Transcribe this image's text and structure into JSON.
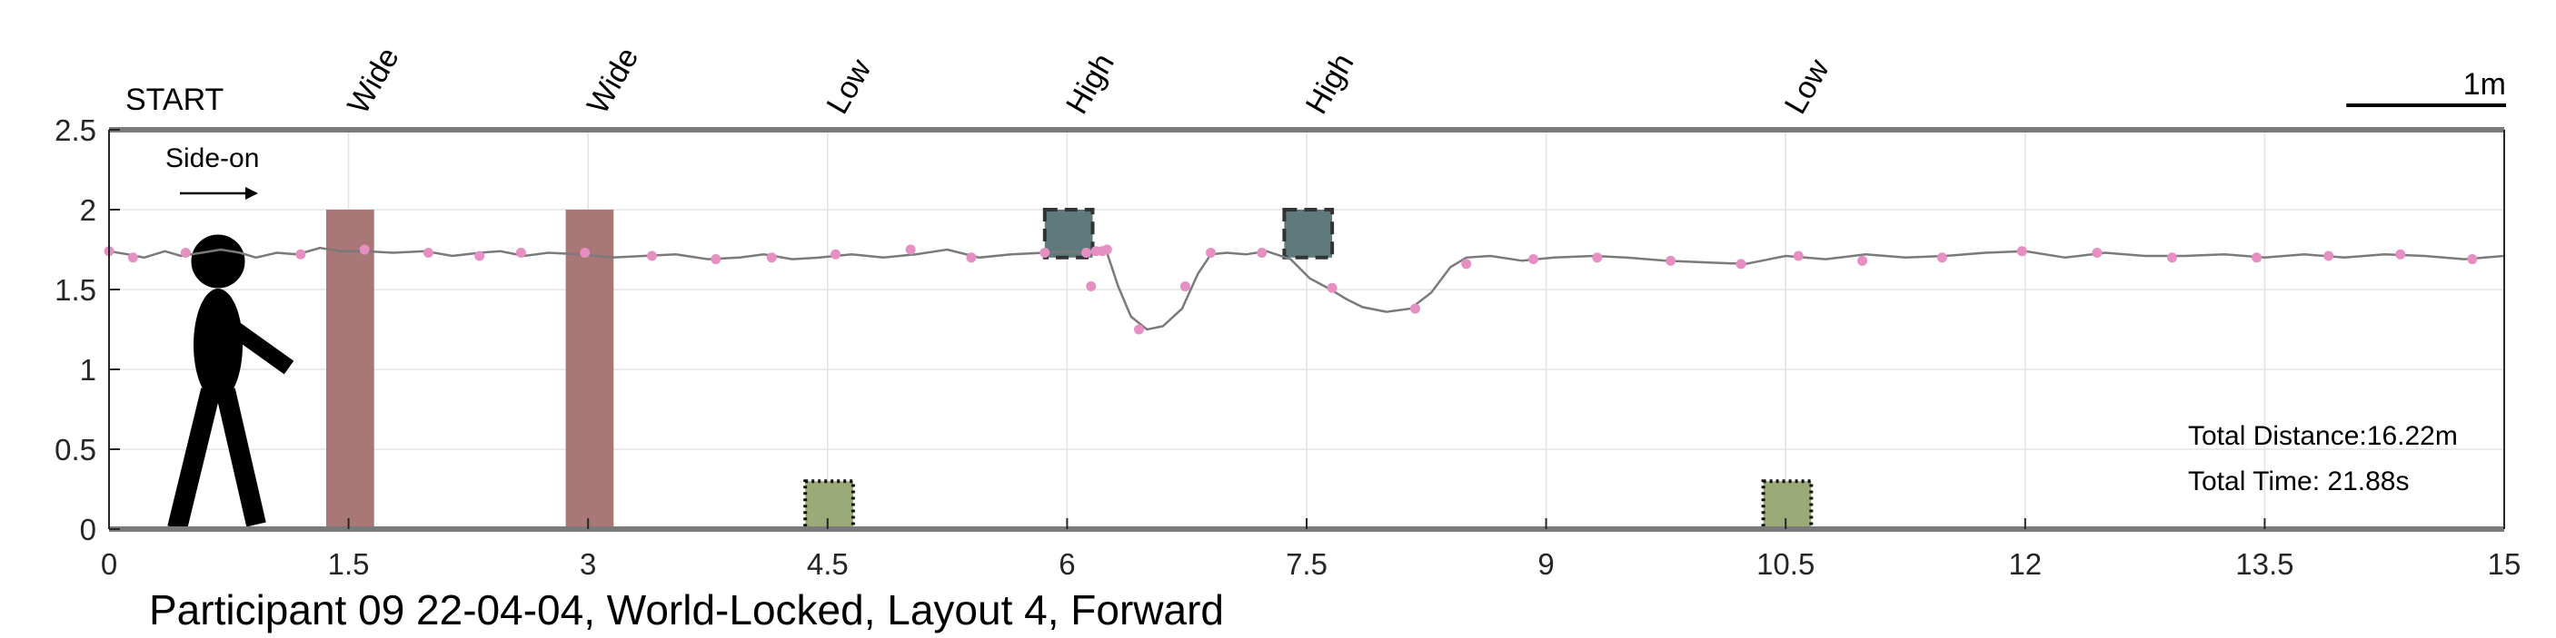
{
  "chart_data": {
    "type": "line",
    "title": "Participant 09 22-04-04, World-Locked, Layout 4, Forward",
    "xlim": [
      0,
      15
    ],
    "ylim": [
      0,
      2.5
    ],
    "x_ticks": [
      0,
      1.5,
      3,
      4.5,
      6,
      7.5,
      9,
      10.5,
      12,
      13.5,
      15
    ],
    "x_tick_labels": [
      "0",
      "1.5",
      "3",
      "4.5",
      "6",
      "7.5",
      "9",
      "10.5",
      "12",
      "13.5",
      "15"
    ],
    "y_ticks": [
      0,
      0.5,
      1,
      1.5,
      2,
      2.5
    ],
    "y_tick_labels": [
      "0",
      "0.5",
      "1",
      "1.5",
      "2",
      "2.5"
    ],
    "grid": true,
    "start_label": "START",
    "view_label": "Side-on",
    "scale_bar_label": "1m",
    "scale_bar_length": 1,
    "obstacle_labels": [
      {
        "x": 1.6,
        "text": "Wide"
      },
      {
        "x": 3.1,
        "text": "Wide"
      },
      {
        "x": 4.6,
        "text": "Low"
      },
      {
        "x": 6.1,
        "text": "High"
      },
      {
        "x": 7.6,
        "text": "High"
      },
      {
        "x": 10.6,
        "text": "Low"
      }
    ],
    "obstacles": [
      {
        "kind": "wide",
        "x0": 1.36,
        "x1": 1.66,
        "y0": 0,
        "y1": 2.0,
        "color": "#a97775"
      },
      {
        "kind": "wide",
        "x0": 2.86,
        "x1": 3.16,
        "y0": 0,
        "y1": 2.0,
        "color": "#a97775"
      },
      {
        "kind": "low",
        "x0": 4.36,
        "x1": 4.66,
        "y0": 0,
        "y1": 0.3,
        "color": "#9aab78"
      },
      {
        "kind": "high",
        "x0": 5.86,
        "x1": 6.16,
        "y0": 1.7,
        "y1": 2.0,
        "color": "#5e7a7d"
      },
      {
        "kind": "high",
        "x0": 7.36,
        "x1": 7.66,
        "y0": 1.7,
        "y1": 2.0,
        "color": "#5e7a7d"
      },
      {
        "kind": "low",
        "x0": 10.36,
        "x1": 10.66,
        "y0": 0,
        "y1": 0.3,
        "color": "#9aab78"
      }
    ],
    "series": [
      {
        "line_color": "#7a7a7a",
        "marker_color": "#e58fc3",
        "x": [
          0.0,
          0.12,
          0.22,
          0.35,
          0.45,
          0.58,
          0.7,
          0.82,
          0.92,
          1.05,
          1.18,
          1.32,
          1.45,
          1.6,
          1.78,
          1.98,
          2.15,
          2.32,
          2.45,
          2.6,
          2.75,
          2.95,
          3.15,
          3.35,
          3.55,
          3.75,
          3.95,
          4.1,
          4.28,
          4.45,
          4.65,
          4.85,
          5.05,
          5.25,
          5.45,
          5.65,
          5.85,
          6.02,
          6.08,
          6.14,
          6.18,
          6.22,
          6.25,
          6.32,
          6.4,
          6.5,
          6.6,
          6.72,
          6.82,
          6.9,
          7.0,
          7.12,
          7.25,
          7.4,
          7.52,
          7.65,
          7.75,
          7.85,
          8.0,
          8.15,
          8.28,
          8.4,
          8.5,
          8.65,
          8.85,
          9.05,
          9.3,
          9.5,
          9.75,
          10.0,
          10.25,
          10.5,
          10.75,
          11.0,
          11.25,
          11.5,
          11.75,
          12.0,
          12.25,
          12.5,
          12.75,
          13.0,
          13.25,
          13.5,
          13.75,
          14.0,
          14.25,
          14.5,
          14.75,
          15.0
        ],
        "y": [
          1.74,
          1.72,
          1.7,
          1.74,
          1.71,
          1.73,
          1.75,
          1.73,
          1.7,
          1.73,
          1.72,
          1.76,
          1.74,
          1.74,
          1.73,
          1.74,
          1.71,
          1.73,
          1.74,
          1.71,
          1.73,
          1.72,
          1.7,
          1.71,
          1.72,
          1.69,
          1.7,
          1.72,
          1.69,
          1.7,
          1.72,
          1.7,
          1.72,
          1.75,
          1.7,
          1.72,
          1.73,
          1.74,
          1.73,
          1.74,
          1.74,
          1.75,
          1.73,
          1.52,
          1.33,
          1.25,
          1.27,
          1.38,
          1.6,
          1.72,
          1.73,
          1.72,
          1.74,
          1.69,
          1.57,
          1.5,
          1.44,
          1.39,
          1.36,
          1.38,
          1.48,
          1.64,
          1.7,
          1.71,
          1.68,
          1.7,
          1.71,
          1.7,
          1.68,
          1.67,
          1.66,
          1.71,
          1.69,
          1.72,
          1.7,
          1.71,
          1.73,
          1.74,
          1.7,
          1.73,
          1.71,
          1.71,
          1.72,
          1.7,
          1.72,
          1.7,
          1.72,
          1.71,
          1.69,
          1.71
        ],
        "markers_x": [
          0.0,
          0.15,
          0.48,
          1.2,
          1.6,
          2.0,
          2.32,
          2.58,
          2.98,
          3.4,
          3.8,
          4.15,
          4.55,
          5.02,
          5.4,
          5.86,
          6.12,
          6.18,
          6.22,
          6.25,
          6.15,
          6.45,
          6.74,
          6.9,
          7.22,
          7.66,
          8.18,
          8.5,
          8.92,
          9.32,
          9.78,
          10.22,
          10.58,
          10.98,
          11.48,
          11.98,
          12.45,
          12.92,
          13.45,
          13.9,
          14.35,
          14.8
        ],
        "markers_y": [
          1.74,
          1.7,
          1.73,
          1.72,
          1.75,
          1.73,
          1.71,
          1.73,
          1.73,
          1.71,
          1.69,
          1.7,
          1.72,
          1.75,
          1.7,
          1.73,
          1.73,
          1.74,
          1.74,
          1.75,
          1.52,
          1.25,
          1.52,
          1.73,
          1.73,
          1.51,
          1.38,
          1.66,
          1.69,
          1.7,
          1.68,
          1.66,
          1.71,
          1.68,
          1.7,
          1.74,
          1.73,
          1.7,
          1.7,
          1.71,
          1.72,
          1.69
        ]
      }
    ],
    "annotations": {
      "total_distance": "Total Distance:16.22m",
      "total_time": "Total Time: 21.88s"
    }
  }
}
